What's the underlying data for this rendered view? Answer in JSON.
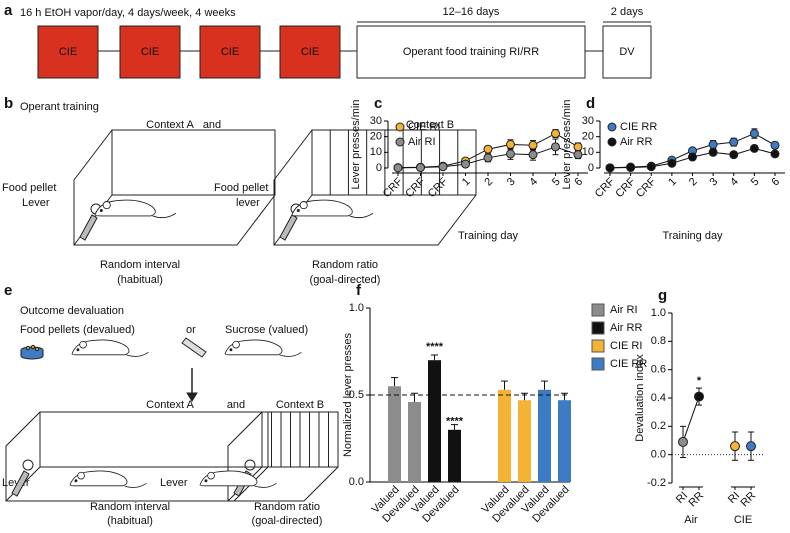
{
  "panel_a": {
    "label": "a",
    "exposure": "16 h EtOH vapor/day, 4 days/week, 4 weeks",
    "boxes": [
      "CIE",
      "CIE",
      "CIE",
      "CIE",
      "Operant food training RI/RR",
      "DV"
    ],
    "durations": [
      "12–16 days",
      "2 days"
    ]
  },
  "panel_b": {
    "label": "b",
    "title": "Operant training",
    "contexts": [
      "Context A",
      "Context B"
    ],
    "joiner": "and",
    "left_labels": [
      [
        "Food pellet",
        "Lever"
      ],
      [
        "Food pellet",
        "lever"
      ]
    ],
    "schedules": [
      [
        "Random interval",
        "(habitual)"
      ],
      [
        "Random ratio",
        "(goal-directed)"
      ]
    ]
  },
  "panel_e": {
    "label": "e",
    "title": "Outcome devaluation",
    "outcomes": [
      "Food pellets (devalued)",
      "Sucrose (valued)"
    ],
    "or": "or",
    "contexts": [
      "Context A",
      "Context B"
    ],
    "joiner": "and",
    "lever_labels": [
      "Lever",
      "Lever"
    ],
    "schedules": [
      [
        "Random interval",
        "(habitual)"
      ],
      [
        "Random ratio",
        "(goal-directed)"
      ]
    ]
  },
  "chart_data": [
    {
      "type": "line",
      "panel": "c",
      "ylabel": "Lever presses/min",
      "xlabel": "Training day",
      "categories": [
        "CRF",
        "CRF",
        "CRF",
        "1",
        "2",
        "3",
        "4",
        "5",
        "6"
      ],
      "series": [
        {
          "name": "CIE RI",
          "color": "#f5b335",
          "values": [
            0.2,
            0.5,
            1.2,
            4.5,
            12,
            15,
            14.5,
            22,
            13.5
          ],
          "errors": [
            0.2,
            0.3,
            0.5,
            1,
            2,
            3,
            3,
            2.5,
            2.5
          ]
        },
        {
          "name": "Air RI",
          "color": "#8c8c8c",
          "values": [
            0.1,
            0.3,
            0.8,
            2.5,
            6.5,
            9,
            8.5,
            13.5,
            8.5
          ],
          "errors": [
            0.1,
            0.2,
            0.4,
            1,
            2.5,
            3.5,
            3.5,
            5,
            2.5
          ]
        }
      ],
      "ylim": [
        0,
        30
      ],
      "yticks": [
        0,
        10,
        20,
        30
      ],
      "legend": "upper left"
    },
    {
      "type": "line",
      "panel": "d",
      "ylabel": "Lever presses/min",
      "xlabel": "Training day",
      "categories": [
        "CRF",
        "CRF",
        "CRF",
        "1",
        "2",
        "3",
        "4",
        "5",
        "6"
      ],
      "series": [
        {
          "name": "CIE RR",
          "color": "#3d7cc4",
          "values": [
            0.1,
            0.6,
            1.2,
            5,
            11,
            15,
            16.5,
            22,
            14.5
          ],
          "errors": [
            0.1,
            0.3,
            0.5,
            1.2,
            1.5,
            2.5,
            2.5,
            3,
            2
          ]
        },
        {
          "name": "Air RR",
          "color": "#111111",
          "values": [
            0.1,
            0.3,
            0.8,
            3,
            7,
            10,
            8.5,
            12.5,
            9
          ],
          "errors": [
            0.1,
            0.2,
            0.4,
            1,
            1.5,
            2,
            1.5,
            1.5,
            1.2
          ]
        }
      ],
      "ylim": [
        0,
        30
      ],
      "yticks": [
        0,
        10,
        20,
        30
      ],
      "legend": "upper left"
    },
    {
      "type": "bar",
      "panel": "f",
      "ylabel": "Normalized lever presses",
      "categories": [
        "Valued",
        "Devalued",
        "Valued",
        "Devalued",
        "Valued",
        "Devalued",
        "Valued",
        "Devalued"
      ],
      "series": [
        {
          "name": "Air RI",
          "color": "#8c8c8c",
          "values": [
            0.55,
            0.46,
            null,
            null,
            null,
            null,
            null,
            null
          ],
          "errors": [
            0.05,
            0.05,
            null,
            null,
            null,
            null,
            null,
            null
          ]
        },
        {
          "name": "Air RR",
          "color": "#111111",
          "values": [
            null,
            null,
            0.7,
            0.3,
            null,
            null,
            null,
            null
          ],
          "errors": [
            null,
            null,
            0.03,
            0.03,
            null,
            null,
            null,
            null
          ]
        },
        {
          "name": "CIE RI",
          "color": "#f5b335",
          "values": [
            null,
            null,
            null,
            null,
            0.53,
            0.47,
            null,
            null
          ],
          "errors": [
            null,
            null,
            null,
            null,
            0.05,
            0.04,
            null,
            null
          ]
        },
        {
          "name": "CIE RR",
          "color": "#3d7cc4",
          "values": [
            null,
            null,
            null,
            null,
            null,
            null,
            0.53,
            0.47
          ],
          "errors": [
            null,
            null,
            null,
            null,
            null,
            null,
            0.05,
            0.04
          ]
        }
      ],
      "annotations": [
        null,
        null,
        "****",
        "****",
        null,
        null,
        null,
        null
      ],
      "hline": 0.5,
      "ylim": [
        0,
        1.0
      ],
      "yticks": [
        {
          "value": 0,
          "label": "0.0"
        },
        {
          "value": 0.5,
          "label": "0.5"
        },
        {
          "value": 1,
          "label": "1.0"
        }
      ],
      "legend": "upper right"
    },
    {
      "type": "dot",
      "panel": "g",
      "ylabel": "Devaluation index",
      "groups": [
        {
          "name": "Air",
          "categories": [
            "RI",
            "RR"
          ],
          "values": [
            0.09,
            0.41
          ],
          "errors": [
            0.11,
            0.06
          ],
          "colors": [
            "#8c8c8c",
            "#111111"
          ],
          "annotations": [
            null,
            "*"
          ],
          "connected": true
        },
        {
          "name": "CIE",
          "categories": [
            "RI",
            "RR"
          ],
          "values": [
            0.06,
            0.06
          ],
          "errors": [
            0.1,
            0.1
          ],
          "colors": [
            "#f5b335",
            "#3d7cc4"
          ],
          "annotations": [
            null,
            null
          ],
          "connected": false
        }
      ],
      "hline": 0,
      "ylim": [
        -0.2,
        1.0
      ],
      "yticks": [
        {
          "value": -0.2,
          "label": "-0.2"
        },
        {
          "value": 0,
          "label": "0.0"
        },
        {
          "value": 0.2,
          "label": "0.2"
        },
        {
          "value": 0.4,
          "label": "0.4"
        },
        {
          "value": 0.6,
          "label": "0.6"
        },
        {
          "value": 0.8,
          "label": "0.8"
        },
        {
          "value": 1,
          "label": "1.0"
        }
      ]
    }
  ]
}
